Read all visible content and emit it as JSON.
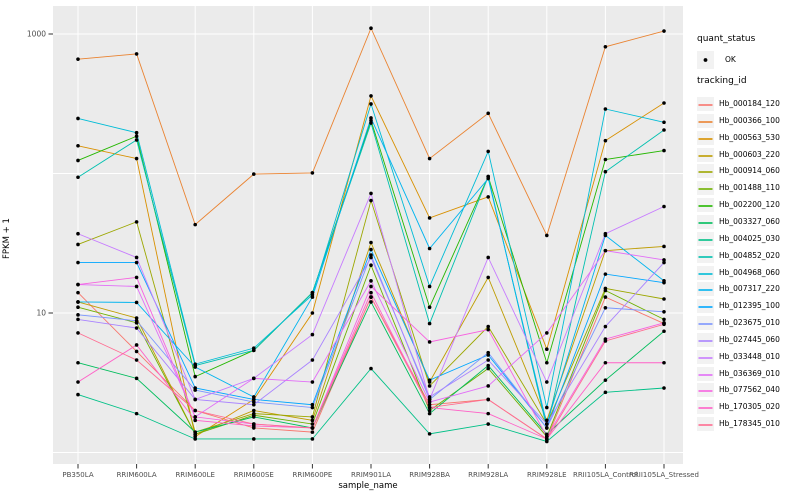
{
  "chart_data": {
    "type": "line",
    "title": "",
    "xlabel": "sample_name",
    "ylabel": "FPKM + 1",
    "y_scale": "log10",
    "grid": true,
    "legend_position": "right",
    "ylim": [
      0.85,
      1400
    ],
    "y_tick_labels": [
      "1000",
      "10"
    ],
    "y_tick_values": [
      1000,
      10
    ],
    "y_gridline_values": [
      1,
      10,
      100,
      1000
    ],
    "categories": [
      "PB350LA",
      "RRIM600LA",
      "RRIM600LE",
      "RRIM600SE",
      "RRIM600PE",
      "RRIM901LA",
      "RRIM928BA",
      "RRIM928LA",
      "RRIM928LE",
      "RRII105LA_Control",
      "RRII105LA_Stressed"
    ],
    "series": [
      {
        "name": "Hb_000184_120",
        "color": "#F8766D",
        "values": [
          14,
          5.3,
          2.0,
          1.5,
          1.4,
          13,
          2.2,
          2.4,
          1.25,
          13,
          8.4
        ]
      },
      {
        "name": "Hb_000366_100",
        "color": "#EA8331",
        "values": [
          660,
          720,
          43,
          99,
          101,
          1100,
          128,
          270,
          36,
          810,
          1050
        ]
      },
      {
        "name": "Hb_000563_530",
        "color": "#D89000",
        "values": [
          158,
          128,
          1.3,
          2.4,
          10,
          360,
          48,
          68,
          5.5,
          172,
          320
        ]
      },
      {
        "name": "Hb_000603_220",
        "color": "#BE9C00",
        "values": [
          12,
          9.2,
          1.35,
          2.0,
          1.7,
          32,
          3.2,
          18,
          1.7,
          28,
          30
        ]
      },
      {
        "name": "Hb_000914_060",
        "color": "#9CA700",
        "values": [
          31,
          45,
          1.4,
          1.9,
          1.8,
          64,
          3.0,
          8.0,
          1.6,
          15,
          12.6
        ]
      },
      {
        "name": "Hb_001488_110",
        "color": "#6FB000",
        "values": [
          11,
          8.5,
          1.35,
          1.85,
          1.6,
          22,
          2.0,
          4.0,
          1.3,
          14.5,
          9.0
        ]
      },
      {
        "name": "Hb_002200_120",
        "color": "#24B700",
        "values": [
          124,
          185,
          3.5,
          5.4,
          14,
          240,
          11,
          95,
          4.4,
          126,
          146
        ]
      },
      {
        "name": "Hb_003327_060",
        "color": "#00BD5C",
        "values": [
          4.4,
          3.4,
          1.4,
          1.8,
          1.5,
          12,
          1.9,
          4.2,
          1.35,
          3.3,
          7.4
        ]
      },
      {
        "name": "Hb_004025_030",
        "color": "#00C087",
        "values": [
          2.6,
          1.9,
          1.25,
          1.25,
          1.25,
          4.0,
          1.36,
          1.6,
          1.2,
          2.7,
          2.9
        ]
      },
      {
        "name": "Hb_004852_020",
        "color": "#00C0AF",
        "values": [
          94,
          174,
          4.2,
          5.4,
          14,
          230,
          8.4,
          95,
          1.5,
          103,
          205
        ]
      },
      {
        "name": "Hb_004968_060",
        "color": "#00BCD6",
        "values": [
          248,
          196,
          4.3,
          5.6,
          13.5,
          315,
          15.5,
          144,
          2.1,
          290,
          233
        ]
      },
      {
        "name": "Hb_007317_220",
        "color": "#00B4EF",
        "values": [
          12,
          11.9,
          4.1,
          2.5,
          13,
          250,
          29,
          92,
          1.6,
          36,
          17
        ]
      },
      {
        "name": "Hb_012395_100",
        "color": "#00A6FF",
        "values": [
          23,
          23,
          2.9,
          2.4,
          2.2,
          28.5,
          3.3,
          5.0,
          1.5,
          19,
          16.5
        ]
      },
      {
        "name": "Hb_023675_010",
        "color": "#7C96FF",
        "values": [
          9.7,
          8.8,
          2.8,
          2.3,
          2.1,
          26,
          2.4,
          5.2,
          1.5,
          10.9,
          10.2
        ]
      },
      {
        "name": "Hb_027445_060",
        "color": "#A983FF",
        "values": [
          9.0,
          7.8,
          2.4,
          2.2,
          4.6,
          25,
          2.5,
          4.6,
          1.6,
          8.0,
          23
        ]
      },
      {
        "name": "Hb_033448_010",
        "color": "#C77CFF",
        "values": [
          37,
          25,
          2.4,
          3.4,
          7.0,
          72,
          2.4,
          25,
          3.2,
          37,
          58
        ]
      },
      {
        "name": "Hb_036369_010",
        "color": "#E26EF7",
        "values": [
          16,
          15.5,
          1.8,
          3.4,
          3.2,
          17,
          2.3,
          3.0,
          7.2,
          28,
          24
        ]
      },
      {
        "name": "Hb_077562_040",
        "color": "#F763E0",
        "values": [
          16,
          18,
          1.8,
          1.6,
          1.5,
          15.5,
          6.2,
          7.6,
          1.3,
          6.5,
          8.5
        ]
      },
      {
        "name": "Hb_170305_020",
        "color": "#FF61C7",
        "values": [
          3.2,
          5.9,
          1.7,
          1.55,
          1.5,
          14,
          2.1,
          1.9,
          1.25,
          4.4,
          4.4
        ]
      },
      {
        "name": "Hb_178345_010",
        "color": "#FF6C91",
        "values": [
          7.2,
          4.6,
          2.0,
          1.6,
          1.5,
          13,
          2.1,
          2.4,
          1.25,
          6.3,
          8.3
        ]
      }
    ]
  },
  "legend": {
    "quant_status_title": "quant_status",
    "quant_status_value": "OK",
    "tracking_id_title": "tracking_id"
  },
  "style": {
    "panel_bg": "#EBEBEB",
    "grid_color": "#FFFFFF",
    "point_color": "#000000",
    "key_bg": "#F2F2F2",
    "tick_color": "#333333",
    "tick_label_color": "#4D4D4D"
  }
}
